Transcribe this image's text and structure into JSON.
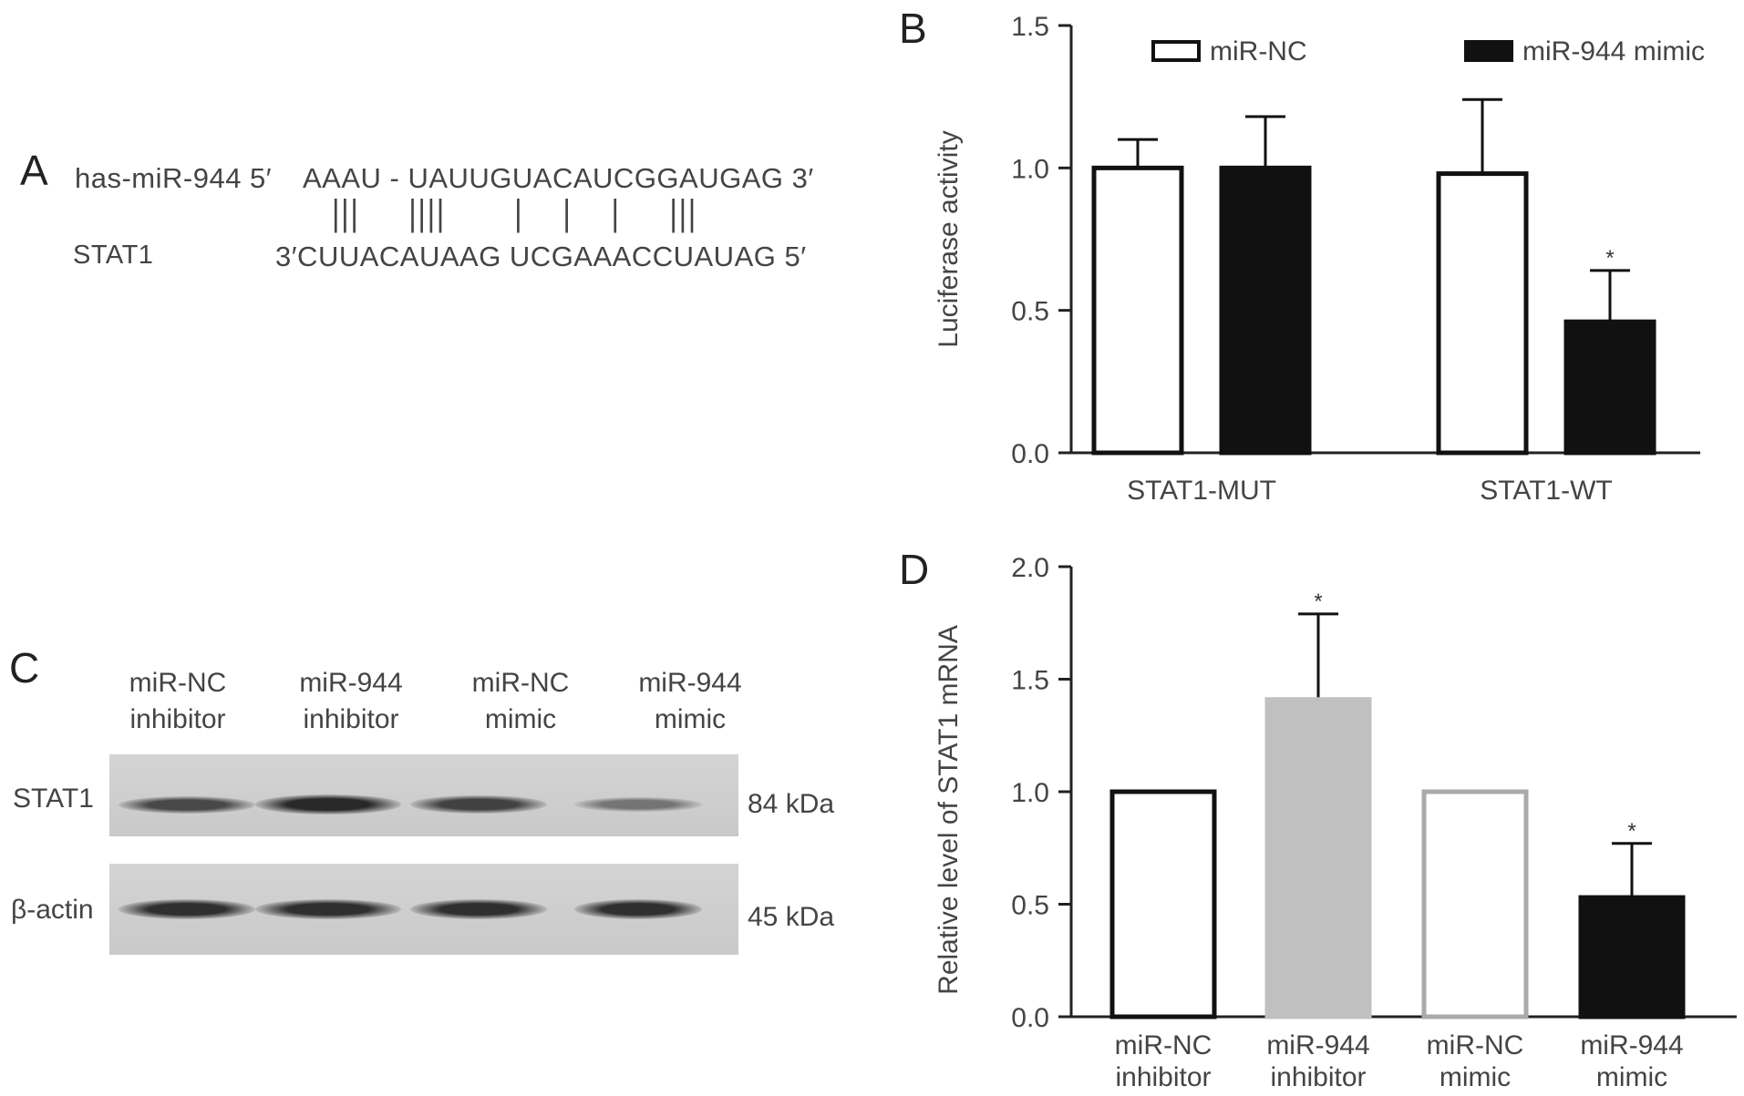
{
  "panel_a": {
    "letter": "A",
    "mirna_label": "has-miR-944 5′",
    "mirna_seq": "AAAU - UAUUGUACAUCGGAUGAG 3′",
    "pairing": "|||     ||||       |    |    |     |||",
    "target_label": "STAT1",
    "target_seq": "3′CUUACAUAAG UCGAAACCUAUAG 5′"
  },
  "panel_b": {
    "letter": "B"
  },
  "panel_c": {
    "letter": "C",
    "lanes": [
      {
        "line1": "miR-NC",
        "line2": "inhibitor"
      },
      {
        "line1": "miR-944",
        "line2": "inhibitor"
      },
      {
        "line1": "miR-NC",
        "line2": "mimic"
      },
      {
        "line1": "miR-944",
        "line2": "mimic"
      }
    ],
    "blots": [
      {
        "protein": "STAT1",
        "size": "84 kDa",
        "band_intensity": [
          0.7,
          0.95,
          0.75,
          0.35
        ]
      },
      {
        "protein": "β-actin",
        "size": "45 kDa",
        "band_intensity": [
          0.9,
          0.9,
          0.9,
          0.9
        ]
      }
    ]
  },
  "panel_d": {
    "letter": "D"
  },
  "chart_data": [
    {
      "type": "bar",
      "panel": "B",
      "categories": [
        "STAT1-MUT",
        "STAT1-WT"
      ],
      "series": [
        {
          "name": "miR-NC",
          "values": [
            1.0,
            0.98
          ],
          "errors": [
            0.1,
            0.26
          ],
          "significance": [
            "",
            ""
          ],
          "fill": "#ffffff",
          "stroke": "#111111"
        },
        {
          "name": "miR-944 mimic",
          "values": [
            1.0,
            0.46
          ],
          "errors": [
            0.18,
            0.18
          ],
          "significance": [
            "",
            "*"
          ],
          "fill": "#111111",
          "stroke": "#111111"
        }
      ],
      "ylabel": "Luciferase activity",
      "ylim": [
        0,
        1.5
      ],
      "yticks": [
        "0.0",
        "0.5",
        "1.0",
        "1.5"
      ],
      "legend": "top"
    },
    {
      "type": "bar",
      "panel": "D",
      "categories": [
        {
          "line1": "miR-NC",
          "line2": "inhibitor"
        },
        {
          "line1": "miR-944",
          "line2": "inhibitor"
        },
        {
          "line1": "miR-NC",
          "line2": "mimic"
        },
        {
          "line1": "miR-944",
          "line2": "mimic"
        }
      ],
      "values": [
        1.0,
        1.41,
        1.0,
        0.53
      ],
      "errors": [
        0,
        0.38,
        0,
        0.24
      ],
      "significance": [
        "",
        "*",
        "",
        "*"
      ],
      "fills": [
        "#ffffff",
        "#c0c0c0",
        "#ffffff",
        "#111111"
      ],
      "strokes": [
        "#111111",
        "#c0c0c0",
        "#aaaaaa",
        "#111111"
      ],
      "ylabel": "Relative level of STAT1 mRNA",
      "ylim": [
        0,
        2.0
      ],
      "yticks": [
        "0.0",
        "0.5",
        "1.0",
        "1.5",
        "2.0"
      ]
    }
  ]
}
